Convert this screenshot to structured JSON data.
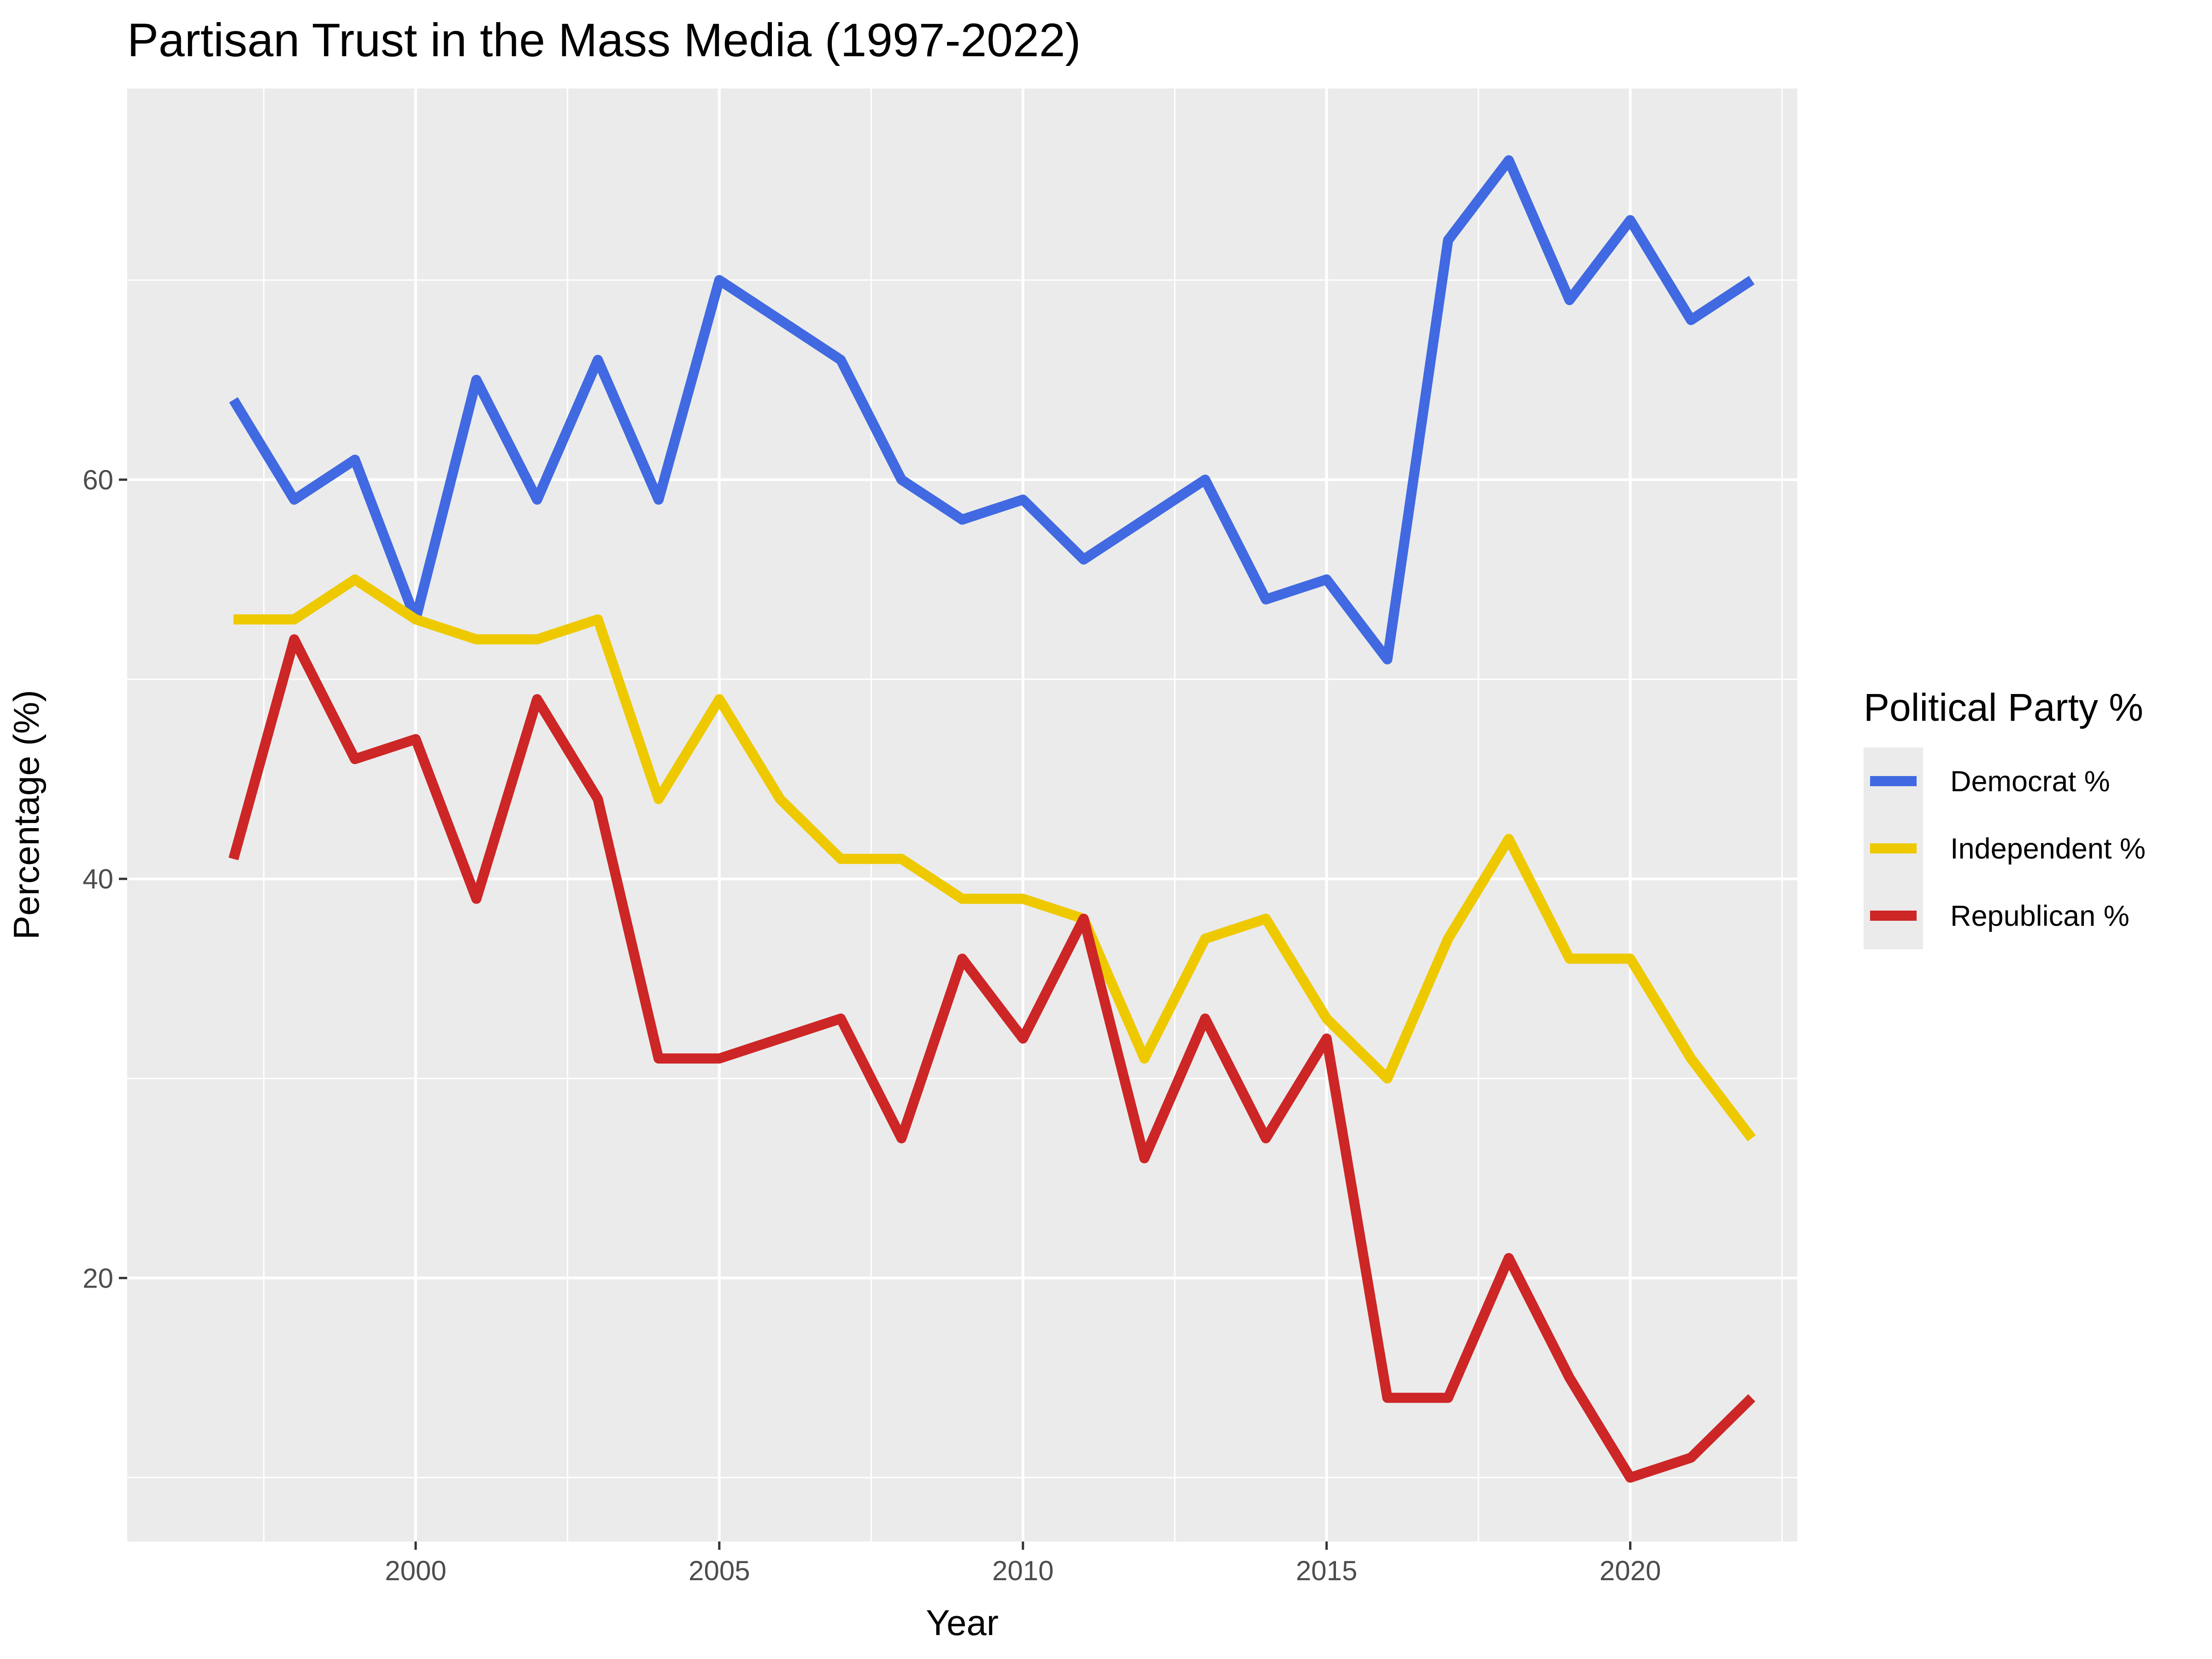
{
  "chart_data": {
    "type": "line",
    "title": "Partisan Trust in the Mass Media (1997-2022)",
    "xlabel": "Year",
    "ylabel": "Percentage (%)",
    "xlim": [
      1995.25,
      2022.75
    ],
    "ylim": [
      6.8,
      79.6
    ],
    "x_ticks": [
      2000,
      2005,
      2010,
      2015,
      2020
    ],
    "y_ticks": [
      20,
      40,
      60
    ],
    "grid": true,
    "legend_title": "Political Party %",
    "legend_position": "right",
    "x": [
      1997,
      1998,
      1999,
      2000,
      2001,
      2002,
      2003,
      2004,
      2005,
      2006,
      2007,
      2008,
      2009,
      2010,
      2011,
      2012,
      2013,
      2014,
      2015,
      2016,
      2017,
      2018,
      2019,
      2020,
      2021,
      2022
    ],
    "series": [
      {
        "name": "Democrat %",
        "color": "#4169E1",
        "values": [
          64,
          59,
          61,
          53,
          65,
          59,
          66,
          59,
          70,
          68,
          66,
          60,
          58,
          59,
          56,
          58,
          60,
          54,
          55,
          51,
          72,
          76,
          69,
          73,
          68,
          70
        ]
      },
      {
        "name": "Independent %",
        "color": "#EEC900",
        "values": [
          53,
          53,
          55,
          53,
          52,
          52,
          53,
          44,
          49,
          44,
          41,
          41,
          39,
          39,
          38,
          31,
          37,
          38,
          33,
          30,
          37,
          42,
          36,
          36,
          31,
          27
        ]
      },
      {
        "name": "Republican %",
        "color": "#CD2626",
        "values": [
          41,
          52,
          46,
          47,
          39,
          49,
          44,
          31,
          31,
          32,
          33,
          27,
          36,
          32,
          38,
          26,
          33,
          27,
          32,
          14,
          14,
          21,
          15,
          10,
          11,
          14
        ]
      }
    ]
  }
}
